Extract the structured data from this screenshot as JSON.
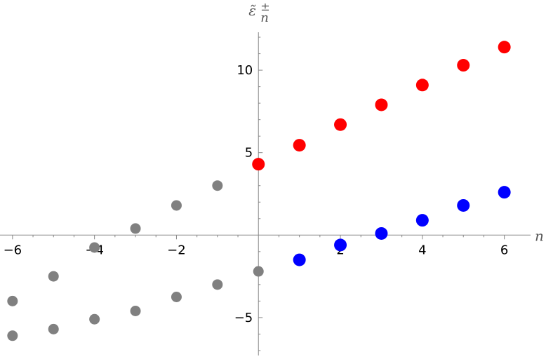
{
  "chart_data": {
    "type": "scatter",
    "title": "",
    "xlabel": "n",
    "ylabel": "ε̃",
    "ylabel_sup": "±",
    "ylabel_sub": "n",
    "xlim": [
      -6.1,
      6.4
    ],
    "ylim": [
      -7.3,
      12.3
    ],
    "x_ticks": [
      -6,
      -4,
      -2,
      2,
      4,
      6
    ],
    "x_tick_labels": [
      "−6",
      "−4",
      "−2",
      "2",
      "4",
      "6"
    ],
    "y_ticks": [
      -5,
      5,
      10
    ],
    "y_tick_labels": [
      "−5",
      "5",
      "10"
    ],
    "grid": false,
    "legend": "none",
    "series": [
      {
        "color": "#ff0000",
        "marker": "large",
        "points": [
          [
            0,
            4.3
          ],
          [
            1,
            5.45
          ],
          [
            2,
            6.7
          ],
          [
            3,
            7.9
          ],
          [
            4,
            9.1
          ],
          [
            5,
            10.3
          ],
          [
            6,
            11.4
          ]
        ]
      },
      {
        "color": "#0000ff",
        "marker": "large",
        "points": [
          [
            1,
            -1.5
          ],
          [
            2,
            -0.6
          ],
          [
            3,
            0.1
          ],
          [
            4,
            0.9
          ],
          [
            5,
            1.8
          ],
          [
            6,
            2.6
          ]
        ]
      },
      {
        "color": "#808080",
        "marker": "small",
        "points": [
          [
            -6,
            -4.0
          ],
          [
            -5,
            -2.5
          ],
          [
            -4,
            -0.75
          ],
          [
            -3,
            0.4
          ],
          [
            -2,
            1.8
          ],
          [
            -1,
            3.0
          ],
          [
            0,
            -2.2
          ],
          [
            -1,
            -3.0
          ],
          [
            -2,
            -3.75
          ],
          [
            -3,
            -4.6
          ],
          [
            -4,
            -5.1
          ],
          [
            -5,
            -5.7
          ],
          [
            -6,
            -6.1
          ]
        ]
      }
    ]
  }
}
